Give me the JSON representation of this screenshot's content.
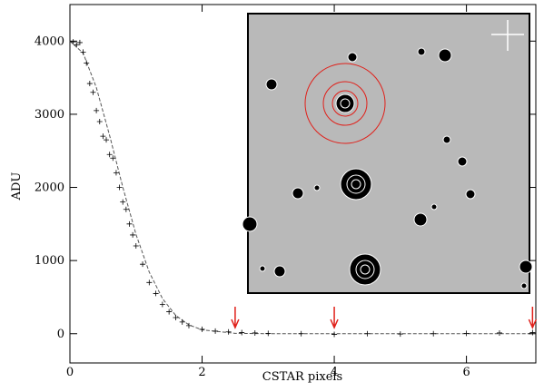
{
  "chart_data": {
    "type": "scatter",
    "xlabel": "CSTAR pixels",
    "ylabel": "ADU",
    "xlim": [
      0,
      7.05
    ],
    "ylim": [
      -400,
      4500
    ],
    "xticks": [
      0,
      2,
      4,
      6
    ],
    "yticks": [
      0,
      1000,
      2000,
      3000,
      4000
    ],
    "points": {
      "color": "#000000",
      "x": [
        0.05,
        0.1,
        0.15,
        0.2,
        0.25,
        0.3,
        0.35,
        0.4,
        0.45,
        0.5,
        0.55,
        0.6,
        0.65,
        0.7,
        0.75,
        0.8,
        0.85,
        0.9,
        0.95,
        1.0,
        1.1,
        1.2,
        1.3,
        1.4,
        1.5,
        1.6,
        1.7,
        1.8,
        2.0,
        2.2,
        2.4,
        2.6,
        2.8,
        3.0,
        3.5,
        4.0,
        4.5,
        5.0,
        5.5,
        6.0,
        6.5,
        7.0
      ],
      "y": [
        3990,
        3950,
        3980,
        3850,
        3700,
        3420,
        3300,
        3050,
        2900,
        2700,
        2650,
        2450,
        2400,
        2200,
        2000,
        1800,
        1700,
        1500,
        1350,
        1200,
        950,
        700,
        550,
        400,
        300,
        220,
        160,
        110,
        60,
        35,
        25,
        15,
        10,
        5,
        0,
        -10,
        0,
        -5,
        0,
        5,
        10,
        15
      ]
    },
    "fit": {
      "color": "#555555",
      "x": [
        0,
        0.2,
        0.4,
        0.6,
        0.8,
        1.0,
        1.2,
        1.4,
        1.6,
        1.8,
        2.0,
        2.5,
        3.0,
        7.0
      ],
      "y": [
        4000,
        3836,
        3364,
        2711,
        2003,
        1357,
        843,
        481,
        251,
        121,
        53,
        5,
        0,
        0
      ]
    },
    "arrows": {
      "color": "#e0201a",
      "x": [
        2.5,
        4,
        7
      ]
    }
  }
}
